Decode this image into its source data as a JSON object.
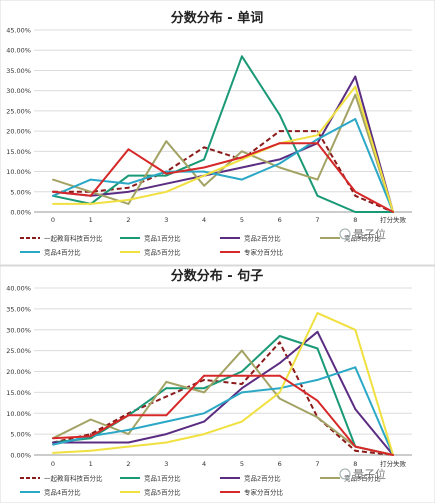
{
  "watermark": "量子位",
  "chart_data": [
    {
      "type": "line",
      "title": "分数分布 - 单词",
      "categories": [
        "0",
        "1",
        "2",
        "3",
        "4",
        "5",
        "6",
        "7",
        "8",
        "打分失败"
      ],
      "ylim": [
        0,
        45
      ],
      "yticks": [
        "0.00%",
        "5.00%",
        "10.00%",
        "15.00%",
        "20.00%",
        "25.00%",
        "30.00%",
        "35.00%",
        "40.00%",
        "45.00%"
      ],
      "grid": true,
      "legend_position": "bottom",
      "series": [
        {
          "name": "一起教育科技百分比",
          "color": "#8b1a1a",
          "dashed": true,
          "values": [
            5,
            5,
            6,
            10,
            16,
            13,
            20,
            20,
            4,
            0
          ]
        },
        {
          "name": "竞品1百分比",
          "color": "#1a9977",
          "dashed": false,
          "values": [
            4,
            2,
            9,
            9,
            13,
            38.5,
            24,
            4,
            0,
            0
          ]
        },
        {
          "name": "竞品2百分比",
          "color": "#5b2d82",
          "dashed": false,
          "values": [
            5,
            4,
            5,
            7,
            9,
            11,
            13,
            17,
            33.5,
            0
          ]
        },
        {
          "name": "竞品3百分比",
          "color": "#a3a366",
          "dashed": false,
          "values": [
            8,
            5,
            2,
            17.5,
            6.5,
            15,
            11,
            8,
            29,
            0
          ]
        },
        {
          "name": "竞品4百分比",
          "color": "#2aa8c6",
          "dashed": false,
          "values": [
            4,
            8,
            7,
            10,
            10,
            8,
            12,
            18,
            23,
            0
          ]
        },
        {
          "name": "竞品5百分比",
          "color": "#f0e040",
          "dashed": false,
          "values": [
            2,
            2,
            3,
            5,
            9,
            13,
            17,
            19,
            31,
            0
          ]
        },
        {
          "name": "专家分百分比",
          "color": "#d62828",
          "dashed": false,
          "values": [
            5,
            4,
            15.5,
            9.5,
            11,
            13.5,
            17,
            17,
            5,
            0
          ]
        }
      ]
    },
    {
      "type": "line",
      "title": "分数分布 - 句子",
      "categories": [
        "0",
        "1",
        "2",
        "3",
        "4",
        "5",
        "6",
        "7",
        "8",
        "打分失败"
      ],
      "ylim": [
        0,
        40
      ],
      "yticks": [
        "0.00%",
        "5.00%",
        "10.00%",
        "15.00%",
        "20.00%",
        "25.00%",
        "30.00%",
        "35.00%",
        "40.00%"
      ],
      "grid": true,
      "legend_position": "bottom",
      "series": [
        {
          "name": "一起教育科技百分比",
          "color": "#8b1a1a",
          "dashed": true,
          "values": [
            3,
            5,
            10,
            14,
            18,
            17,
            27,
            9,
            1,
            0
          ]
        },
        {
          "name": "竞品1百分比",
          "color": "#1a9977",
          "dashed": false,
          "values": [
            3,
            4,
            9.5,
            16,
            16,
            20,
            28.5,
            25.5,
            2,
            0
          ]
        },
        {
          "name": "竞品2百分比",
          "color": "#5b2d82",
          "dashed": false,
          "values": [
            3,
            3,
            3,
            5,
            8,
            16,
            22,
            29.5,
            11,
            0
          ]
        },
        {
          "name": "竞品3百分比",
          "color": "#a3a366",
          "dashed": false,
          "values": [
            4,
            8.5,
            5,
            17.5,
            15,
            25,
            13.5,
            9,
            2,
            0
          ]
        },
        {
          "name": "竞品4百分比",
          "color": "#2aa8c6",
          "dashed": false,
          "values": [
            2.5,
            4.5,
            6,
            8,
            10,
            15,
            16,
            18,
            21,
            0
          ]
        },
        {
          "name": "竞品5百分比",
          "color": "#f0e040",
          "dashed": false,
          "values": [
            0.5,
            1,
            2,
            3,
            5,
            8,
            15,
            34,
            30,
            0
          ]
        },
        {
          "name": "专家分百分比",
          "color": "#d62828",
          "dashed": false,
          "values": [
            4,
            4.5,
            9.5,
            9.5,
            19,
            19,
            19,
            13,
            2,
            0
          ]
        }
      ]
    }
  ]
}
